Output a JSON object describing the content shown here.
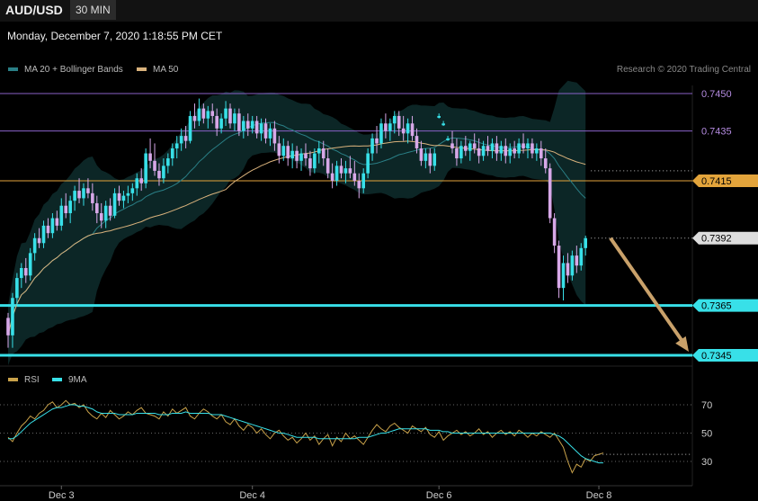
{
  "header": {
    "symbol": "AUD/USD",
    "timeframe": "30 MIN"
  },
  "datetime": "Monday, December 7, 2020 1:18:55 PM CET",
  "price_legend": [
    {
      "name": "MA 20 + Bollinger Bands",
      "color": "#2a7f86"
    },
    {
      "name": "MA 50",
      "color": "#d9b27c"
    }
  ],
  "rsi_legend": [
    {
      "name": "RSI",
      "color": "#c9a24a"
    },
    {
      "name": "9MA",
      "color": "#38e0e8"
    }
  ],
  "research": "Research © 2020 Trading Central",
  "colors": {
    "bull": "#38e0e8",
    "bear": "#d7a8e8",
    "ma20": "#2a7f86",
    "ma50": "#d9b27c",
    "band": "#0c2626",
    "arrow": "#c9a16a",
    "rsi": "#c9a24a",
    "rsi_ma": "#38e0e8"
  },
  "chart_data": {
    "type": "candlestick",
    "x_labels": [
      {
        "label": "Dec 3",
        "t": 12
      },
      {
        "label": "Dec 4",
        "t": 55
      },
      {
        "label": "Dec 6",
        "t": 97
      },
      {
        "label": "Dec 8",
        "t": 133
      }
    ],
    "price_range": [
      0.734,
      0.7455
    ],
    "levels": [
      {
        "value": 0.745,
        "label": "0.7450",
        "kind": "line",
        "color": "#8a62c9",
        "label_bg": "#000000",
        "label_fg": "#b48be0"
      },
      {
        "value": 0.7435,
        "label": "0.7435",
        "kind": "line",
        "color": "#8a62c9",
        "label_bg": "#000000",
        "label_fg": "#b48be0"
      },
      {
        "value": 0.7415,
        "label": "0.7415",
        "kind": "line",
        "color": "#e3a43b",
        "label_bg": "#e3a43b",
        "label_fg": "#000000"
      },
      {
        "value": 0.7392,
        "label": "0.7392",
        "kind": "dotted",
        "color": "#bbbbbb",
        "label_bg": "#dddddd",
        "label_fg": "#000000"
      },
      {
        "value": 0.7365,
        "label": "0.7365",
        "kind": "thick",
        "color": "#38e0e8",
        "label_bg": "#38e0e8",
        "label_fg": "#000000"
      },
      {
        "value": 0.7345,
        "label": "0.7345",
        "kind": "thick",
        "color": "#38e0e8",
        "label_bg": "#38e0e8",
        "label_fg": "#000000"
      }
    ],
    "projection": {
      "from": [
        134,
        0.7392
      ],
      "to": [
        147,
        0.7345
      ]
    },
    "candles": [
      [
        0.736,
        0.7362,
        0.7348,
        0.7353
      ],
      [
        0.7353,
        0.737,
        0.7348,
        0.7368
      ],
      [
        0.7368,
        0.7378,
        0.7365,
        0.7376
      ],
      [
        0.7376,
        0.7382,
        0.7372,
        0.738
      ],
      [
        0.738,
        0.7384,
        0.7374,
        0.7377
      ],
      [
        0.7377,
        0.7388,
        0.7375,
        0.7386
      ],
      [
        0.7386,
        0.7394,
        0.7383,
        0.7392
      ],
      [
        0.7392,
        0.7396,
        0.7388,
        0.739
      ],
      [
        0.739,
        0.7399,
        0.7388,
        0.7397
      ],
      [
        0.7397,
        0.74,
        0.7392,
        0.7394
      ],
      [
        0.7394,
        0.7402,
        0.7392,
        0.74
      ],
      [
        0.74,
        0.7403,
        0.7395,
        0.7397
      ],
      [
        0.7397,
        0.7408,
        0.7395,
        0.7405
      ],
      [
        0.7405,
        0.741,
        0.74,
        0.7402
      ],
      [
        0.7402,
        0.7409,
        0.7398,
        0.7407
      ],
      [
        0.7407,
        0.7413,
        0.7403,
        0.7411
      ],
      [
        0.7411,
        0.7416,
        0.7406,
        0.7408
      ],
      [
        0.7408,
        0.7414,
        0.7405,
        0.7412
      ],
      [
        0.7412,
        0.7416,
        0.7408,
        0.741
      ],
      [
        0.741,
        0.7414,
        0.7403,
        0.7406
      ],
      [
        0.7406,
        0.7409,
        0.7398,
        0.7402
      ],
      [
        0.7402,
        0.7406,
        0.7396,
        0.7399
      ],
      [
        0.7399,
        0.7407,
        0.7396,
        0.7405
      ],
      [
        0.7405,
        0.7408,
        0.7399,
        0.7401
      ],
      [
        0.7401,
        0.7412,
        0.74,
        0.741
      ],
      [
        0.741,
        0.7413,
        0.7405,
        0.7407
      ],
      [
        0.7407,
        0.7411,
        0.7404,
        0.7409
      ],
      [
        0.7409,
        0.7413,
        0.7406,
        0.741
      ],
      [
        0.741,
        0.7414,
        0.7407,
        0.7412
      ],
      [
        0.7412,
        0.7418,
        0.7409,
        0.7416
      ],
      [
        0.7416,
        0.742,
        0.7411,
        0.7414
      ],
      [
        0.7414,
        0.7428,
        0.7412,
        0.7426
      ],
      [
        0.7426,
        0.7432,
        0.742,
        0.7423
      ],
      [
        0.7423,
        0.743,
        0.7417,
        0.7419
      ],
      [
        0.7419,
        0.7422,
        0.7413,
        0.7416
      ],
      [
        0.7416,
        0.7424,
        0.7414,
        0.7421
      ],
      [
        0.7421,
        0.7426,
        0.7418,
        0.7424
      ],
      [
        0.7424,
        0.743,
        0.7421,
        0.7428
      ],
      [
        0.7428,
        0.7433,
        0.7424,
        0.743
      ],
      [
        0.743,
        0.7436,
        0.7427,
        0.7433
      ],
      [
        0.7433,
        0.7437,
        0.7428,
        0.7431
      ],
      [
        0.7431,
        0.7443,
        0.743,
        0.7441
      ],
      [
        0.7441,
        0.7446,
        0.7436,
        0.7439
      ],
      [
        0.7439,
        0.7448,
        0.7437,
        0.7444
      ],
      [
        0.7444,
        0.7446,
        0.7438,
        0.744
      ],
      [
        0.744,
        0.7445,
        0.7436,
        0.7443
      ],
      [
        0.7443,
        0.7446,
        0.7438,
        0.7441
      ],
      [
        0.7441,
        0.7444,
        0.7433,
        0.7436
      ],
      [
        0.7436,
        0.7442,
        0.7434,
        0.744
      ],
      [
        0.744,
        0.7447,
        0.7437,
        0.7444
      ],
      [
        0.7444,
        0.7446,
        0.7436,
        0.7438
      ],
      [
        0.7438,
        0.7444,
        0.7435,
        0.7442
      ],
      [
        0.7442,
        0.7444,
        0.7433,
        0.7435
      ],
      [
        0.7435,
        0.7441,
        0.7432,
        0.7439
      ],
      [
        0.7439,
        0.7442,
        0.7433,
        0.7436
      ],
      [
        0.7436,
        0.7441,
        0.7434,
        0.7439
      ],
      [
        0.7439,
        0.7441,
        0.7432,
        0.7434
      ],
      [
        0.7434,
        0.744,
        0.7431,
        0.7438
      ],
      [
        0.7438,
        0.744,
        0.743,
        0.7432
      ],
      [
        0.7432,
        0.7438,
        0.7429,
        0.7436
      ],
      [
        0.7436,
        0.7439,
        0.7427,
        0.743
      ],
      [
        0.743,
        0.7433,
        0.7422,
        0.7425
      ],
      [
        0.7425,
        0.7432,
        0.7423,
        0.7429
      ],
      [
        0.7429,
        0.7431,
        0.7421,
        0.7424
      ],
      [
        0.7424,
        0.743,
        0.742,
        0.7427
      ],
      [
        0.7427,
        0.7429,
        0.742,
        0.7423
      ],
      [
        0.7423,
        0.7428,
        0.7419,
        0.7426
      ],
      [
        0.7426,
        0.743,
        0.7421,
        0.7424
      ],
      [
        0.7424,
        0.7427,
        0.7417,
        0.742
      ],
      [
        0.742,
        0.7428,
        0.7418,
        0.7426
      ],
      [
        0.7426,
        0.7431,
        0.7422,
        0.7428
      ],
      [
        0.7428,
        0.7431,
        0.7421,
        0.7424
      ],
      [
        0.7424,
        0.7428,
        0.7416,
        0.7418
      ],
      [
        0.7418,
        0.7422,
        0.7412,
        0.7415
      ],
      [
        0.7415,
        0.7423,
        0.7413,
        0.7421
      ],
      [
        0.7421,
        0.7424,
        0.7416,
        0.7418
      ],
      [
        0.7418,
        0.7423,
        0.7414,
        0.742
      ],
      [
        0.742,
        0.7425,
        0.7416,
        0.7418
      ],
      [
        0.7418,
        0.7423,
        0.7413,
        0.7415
      ],
      [
        0.7415,
        0.7418,
        0.7408,
        0.7412
      ],
      [
        0.7412,
        0.742,
        0.741,
        0.7418
      ],
      [
        0.7418,
        0.7428,
        0.7416,
        0.7426
      ],
      [
        0.7426,
        0.7434,
        0.7423,
        0.7432
      ],
      [
        0.7432,
        0.7437,
        0.7426,
        0.743
      ],
      [
        0.743,
        0.744,
        0.7428,
        0.7438
      ],
      [
        0.7438,
        0.7442,
        0.7432,
        0.7435
      ],
      [
        0.7435,
        0.744,
        0.7431,
        0.7438
      ],
      [
        0.7438,
        0.7443,
        0.7434,
        0.7441
      ],
      [
        0.7441,
        0.7443,
        0.7433,
        0.7436
      ],
      [
        0.7436,
        0.7441,
        0.7431,
        0.7434
      ],
      [
        0.7434,
        0.744,
        0.743,
        0.7438
      ],
      [
        0.7438,
        0.7441,
        0.7431,
        0.7433
      ],
      [
        0.7433,
        0.7436,
        0.7426,
        0.7428
      ],
      [
        0.7428,
        0.7431,
        0.7421,
        0.7423
      ],
      [
        0.7423,
        0.7428,
        0.742,
        0.7426
      ],
      [
        0.7426,
        0.7428,
        0.7418,
        0.7421
      ],
      [
        0.7421,
        0.7428,
        0.7419,
        0.7426
      ],
      [
        0.7441,
        0.7442,
        0.744,
        0.7441
      ],
      [
        0.7438,
        0.7439,
        0.7437,
        0.7438
      ],
      [
        0.7432,
        0.7433,
        0.7431,
        0.7432
      ],
      [
        0.743,
        0.7435,
        0.7426,
        0.7428
      ],
      [
        0.7428,
        0.7432,
        0.7421,
        0.7424
      ],
      [
        0.7424,
        0.7431,
        0.7422,
        0.7429
      ],
      [
        0.7429,
        0.7433,
        0.7425,
        0.7427
      ],
      [
        0.7427,
        0.7431,
        0.7423,
        0.743
      ],
      [
        0.743,
        0.7434,
        0.7426,
        0.7428
      ],
      [
        0.7428,
        0.7432,
        0.7422,
        0.7425
      ],
      [
        0.7425,
        0.7431,
        0.7423,
        0.7429
      ],
      [
        0.7429,
        0.7433,
        0.7425,
        0.7427
      ],
      [
        0.7427,
        0.7432,
        0.7424,
        0.743
      ],
      [
        0.743,
        0.7433,
        0.7423,
        0.7426
      ],
      [
        0.7426,
        0.7431,
        0.7423,
        0.7429
      ],
      [
        0.7429,
        0.7432,
        0.7422,
        0.7425
      ],
      [
        0.7425,
        0.743,
        0.7422,
        0.7428
      ],
      [
        0.7428,
        0.7431,
        0.7424,
        0.7426
      ],
      [
        0.7426,
        0.7432,
        0.7424,
        0.743
      ],
      [
        0.743,
        0.7434,
        0.7426,
        0.7428
      ],
      [
        0.7428,
        0.7432,
        0.7424,
        0.743
      ],
      [
        0.743,
        0.7432,
        0.7424,
        0.7426
      ],
      [
        0.7426,
        0.743,
        0.7423,
        0.7428
      ],
      [
        0.7428,
        0.7431,
        0.7421,
        0.7424
      ],
      [
        0.7424,
        0.7428,
        0.7418,
        0.742
      ],
      [
        0.742,
        0.7422,
        0.7398,
        0.74
      ],
      [
        0.74,
        0.7402,
        0.7386,
        0.7389
      ],
      [
        0.7389,
        0.7391,
        0.7368,
        0.7372
      ],
      [
        0.7372,
        0.7385,
        0.7367,
        0.7382
      ],
      [
        0.7382,
        0.7386,
        0.7374,
        0.7377
      ],
      [
        0.7377,
        0.7387,
        0.7375,
        0.7385
      ],
      [
        0.7385,
        0.7389,
        0.7378,
        0.7381
      ],
      [
        0.7381,
        0.739,
        0.7379,
        0.7388
      ],
      [
        0.7388,
        0.7393,
        0.7385,
        0.7392
      ]
    ],
    "rsi_levels": [
      70,
      50,
      30
    ],
    "rsi_range": [
      18,
      82
    ],
    "rsi": [
      47,
      44,
      50,
      55,
      58,
      62,
      60,
      64,
      66,
      70,
      72,
      68,
      70,
      73,
      70,
      71,
      68,
      70,
      65,
      62,
      60,
      64,
      61,
      66,
      63,
      60,
      62,
      65,
      63,
      66,
      68,
      64,
      63,
      62,
      60,
      65,
      62,
      67,
      64,
      66,
      68,
      62,
      60,
      64,
      67,
      65,
      62,
      60,
      63,
      58,
      56,
      60,
      55,
      52,
      56,
      54,
      50,
      53,
      49,
      46,
      50,
      52,
      48,
      45,
      47,
      43,
      46,
      50,
      45,
      48,
      42,
      46,
      49,
      41,
      47,
      44,
      50,
      46,
      48,
      45,
      42,
      47,
      52,
      56,
      53,
      51,
      55,
      57,
      54,
      52,
      50,
      55,
      53,
      51,
      54,
      49,
      47,
      51,
      45,
      48,
      50,
      52,
      49,
      51,
      48,
      50,
      53,
      49,
      51,
      47,
      50,
      52,
      49,
      51,
      48,
      52,
      50,
      47,
      50,
      48,
      51,
      49,
      47,
      50,
      45,
      40,
      30,
      22,
      28,
      26,
      32,
      30,
      34,
      35,
      36
    ],
    "rsi_ma": [
      46,
      46,
      48,
      51,
      54,
      57,
      59,
      61,
      63,
      65,
      67,
      68,
      68,
      69,
      70,
      70,
      69,
      69,
      68,
      67,
      65,
      64,
      64,
      64,
      64,
      63,
      63,
      63,
      63,
      64,
      64,
      64,
      64,
      64,
      63,
      63,
      63,
      64,
      64,
      64,
      65,
      64,
      64,
      64,
      64,
      64,
      63,
      63,
      63,
      62,
      61,
      60,
      59,
      58,
      57,
      56,
      55,
      54,
      53,
      52,
      51,
      50,
      50,
      49,
      48,
      47,
      47,
      47,
      47,
      47,
      46,
      46,
      46,
      46,
      46,
      46,
      46,
      46,
      46,
      47,
      47,
      47,
      48,
      49,
      50,
      50,
      51,
      52,
      53,
      53,
      53,
      53,
      53,
      53,
      53,
      52,
      52,
      52,
      51,
      51,
      50,
      50,
      50,
      50,
      50,
      50,
      50,
      50,
      50,
      50,
      50,
      50,
      50,
      50,
      50,
      50,
      50,
      50,
      50,
      50,
      50,
      50,
      50,
      49,
      48,
      46,
      43,
      40,
      37,
      34,
      32,
      31,
      30,
      29,
      29
    ]
  }
}
